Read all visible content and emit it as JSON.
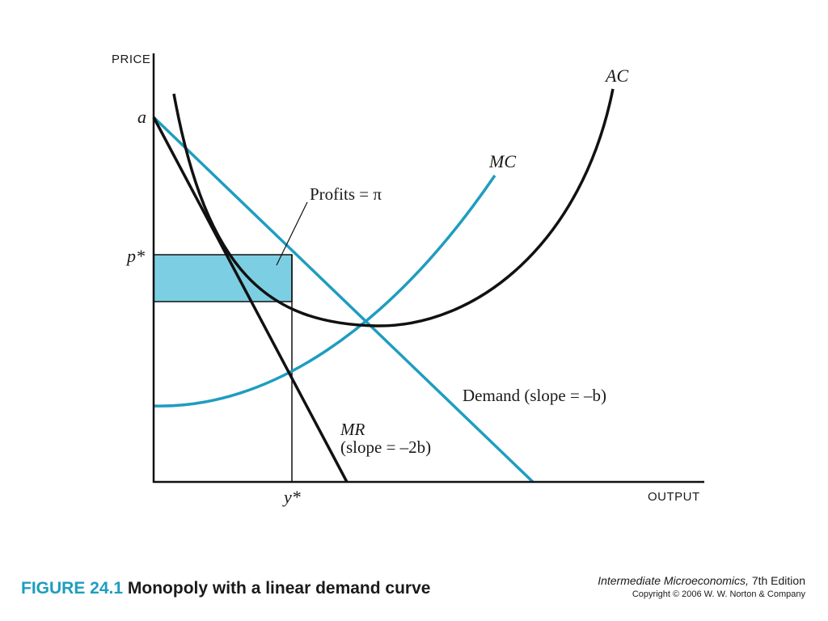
{
  "axes": {
    "y_label": "PRICE",
    "x_label": "OUTPUT"
  },
  "marks": {
    "a": "a",
    "p_star": "p*",
    "y_star": "y*"
  },
  "curves": {
    "ac": "AC",
    "mc": "MC",
    "demand": "Demand (slope = –b)",
    "mr_line1": "MR",
    "mr_line2": "(slope = –2b)",
    "profits": "Profits = π"
  },
  "caption": {
    "number": "FIGURE 24.1",
    "title": "Monopoly with a linear demand curve"
  },
  "book": {
    "title": "Intermediate Microeconomics,",
    "edition": " 7th Edition",
    "copyright": "Copyright © 2006 W. W. Norton & Company"
  },
  "colors": {
    "blue_curve": "#1e9dbf",
    "profit_fill": "#7ccfe2",
    "black_curve": "#111111"
  }
}
